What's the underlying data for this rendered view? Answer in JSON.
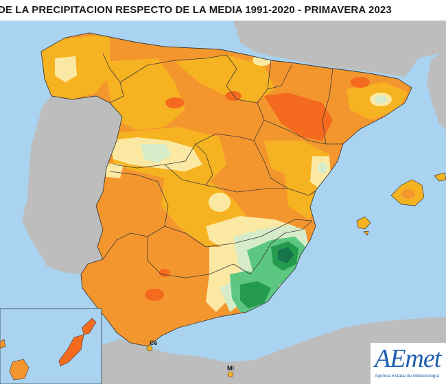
{
  "map": {
    "title": "DE LA PRECIPITACION RESPECTO DE LA MEDIA  1991-2020  - PRIMAVERA 2023",
    "labels": {
      "ceuta": "Ce",
      "melilla": "Ml"
    },
    "colors": {
      "sea": "#a9d3f0",
      "land_outside": "#bdbdbd",
      "very_dry": "#f46a1f",
      "dry": "#f4962e",
      "slightly_dry": "#f6b321",
      "near_normal": "#fbe9a3",
      "normal": "#d6ecc8",
      "wet": "#5cc781",
      "very_wet": "#239a4e",
      "extremely_wet": "#16734a",
      "boundary": "#3a3a3a"
    }
  },
  "logo": {
    "name": "AEmet",
    "subtitle": "Agencia Estatal de Meteorología"
  }
}
